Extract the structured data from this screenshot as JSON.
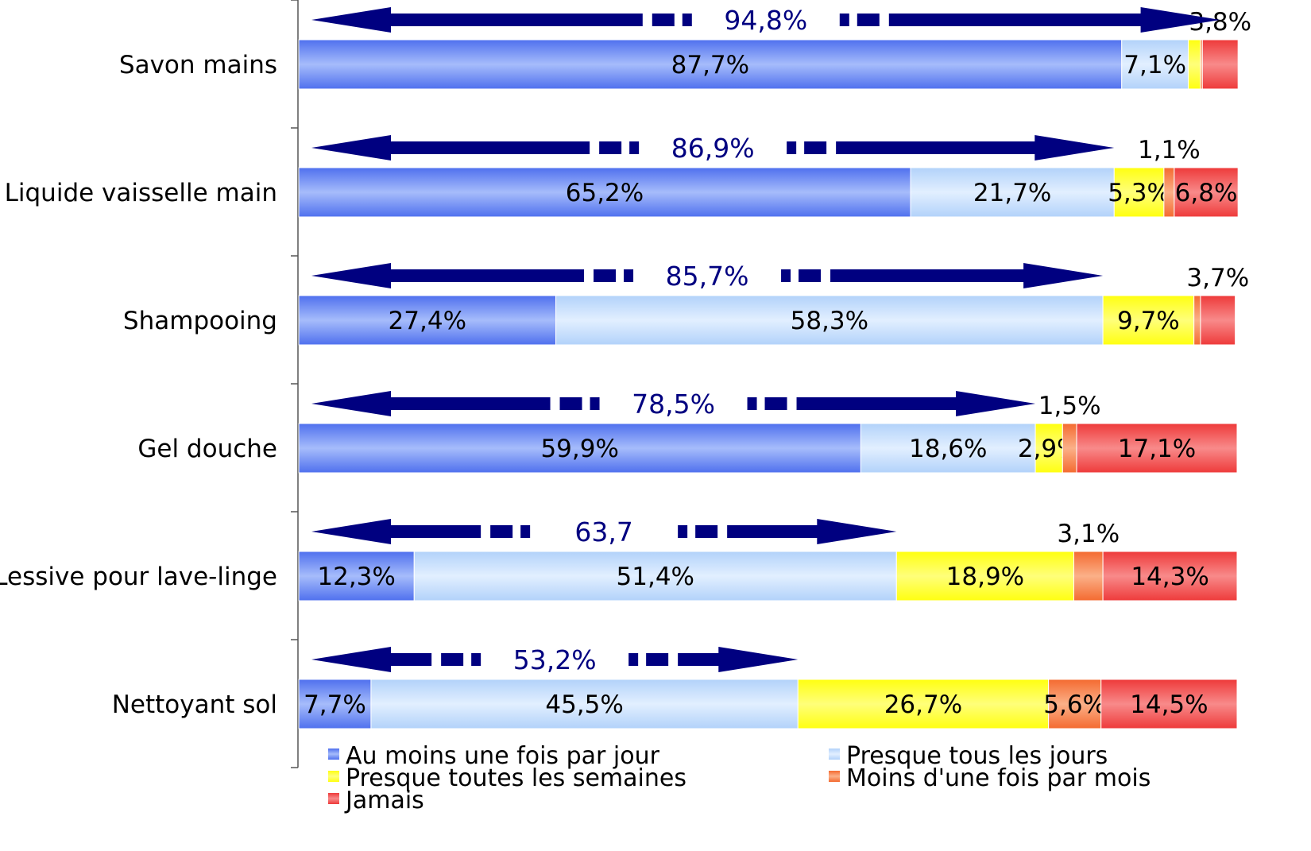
{
  "chart_data": {
    "type": "bar",
    "orientation": "horizontal",
    "stacked": true,
    "title": "",
    "xlabel": "",
    "ylabel": "",
    "xlim": [
      0,
      100
    ],
    "grid": false,
    "legend_position": "bottom",
    "series": [
      {
        "name": "Au moins une fois par jour",
        "color": "#6f8ff2"
      },
      {
        "name": "Presque tous les jours",
        "color": "#c2dcfb"
      },
      {
        "name": "Presque toutes les semaines",
        "color": "#ffff33"
      },
      {
        "name": "Moins d'une fois par mois",
        "color": "#f7905e"
      },
      {
        "name": "Jamais",
        "color": "#f25555"
      }
    ],
    "categories": [
      {
        "name": "Savon mains",
        "values": [
          87.7,
          7.1,
          1.3,
          0.2,
          3.8
        ],
        "labels": [
          "87,7%",
          "7,1%",
          "",
          "",
          ""
        ],
        "top_label": "3,8%",
        "top_label_series": 4,
        "arrow_value": 94.8,
        "arrow_label": "94,8%"
      },
      {
        "name": "Liquide vaisselle main",
        "values": [
          65.2,
          21.7,
          5.3,
          1.1,
          6.8
        ],
        "labels": [
          "65,2%",
          "21,7%",
          "5,3%",
          "",
          "6,8%"
        ],
        "top_label": "1,1%",
        "top_label_series": 3,
        "arrow_value": 86.9,
        "arrow_label": "86,9%"
      },
      {
        "name": "Shampooing",
        "values": [
          27.4,
          58.3,
          9.7,
          0.7,
          3.7
        ],
        "labels": [
          "27,4%",
          "58,3%",
          "9,7%",
          "",
          ""
        ],
        "top_label": "3,7%",
        "top_label_series": 4,
        "arrow_value": 85.7,
        "arrow_label": "85,7%"
      },
      {
        "name": "Gel douche",
        "values": [
          59.9,
          18.6,
          2.9,
          1.5,
          17.1
        ],
        "labels": [
          "59,9%",
          "18,6%",
          "2,9%",
          "",
          "17,1%"
        ],
        "top_label": "1,5%",
        "top_label_series": 3,
        "arrow_value": 78.5,
        "arrow_label": "78,5%"
      },
      {
        "name": "Lessive pour lave-linge",
        "values": [
          12.3,
          51.4,
          18.9,
          3.1,
          14.3
        ],
        "labels": [
          "12,3%",
          "51,4%",
          "18,9%",
          "",
          "14,3%"
        ],
        "top_label": "3,1%",
        "top_label_series": 3,
        "arrow_value": 63.7,
        "arrow_label": "63,7"
      },
      {
        "name": "Nettoyant sol",
        "values": [
          7.7,
          45.5,
          26.7,
          5.6,
          14.5
        ],
        "labels": [
          "7,7%",
          "45,5%",
          "26,7%",
          "5,6%",
          "14,5%"
        ],
        "top_label": "",
        "top_label_series": null,
        "arrow_value": 53.2,
        "arrow_label": "53,2%"
      }
    ]
  }
}
